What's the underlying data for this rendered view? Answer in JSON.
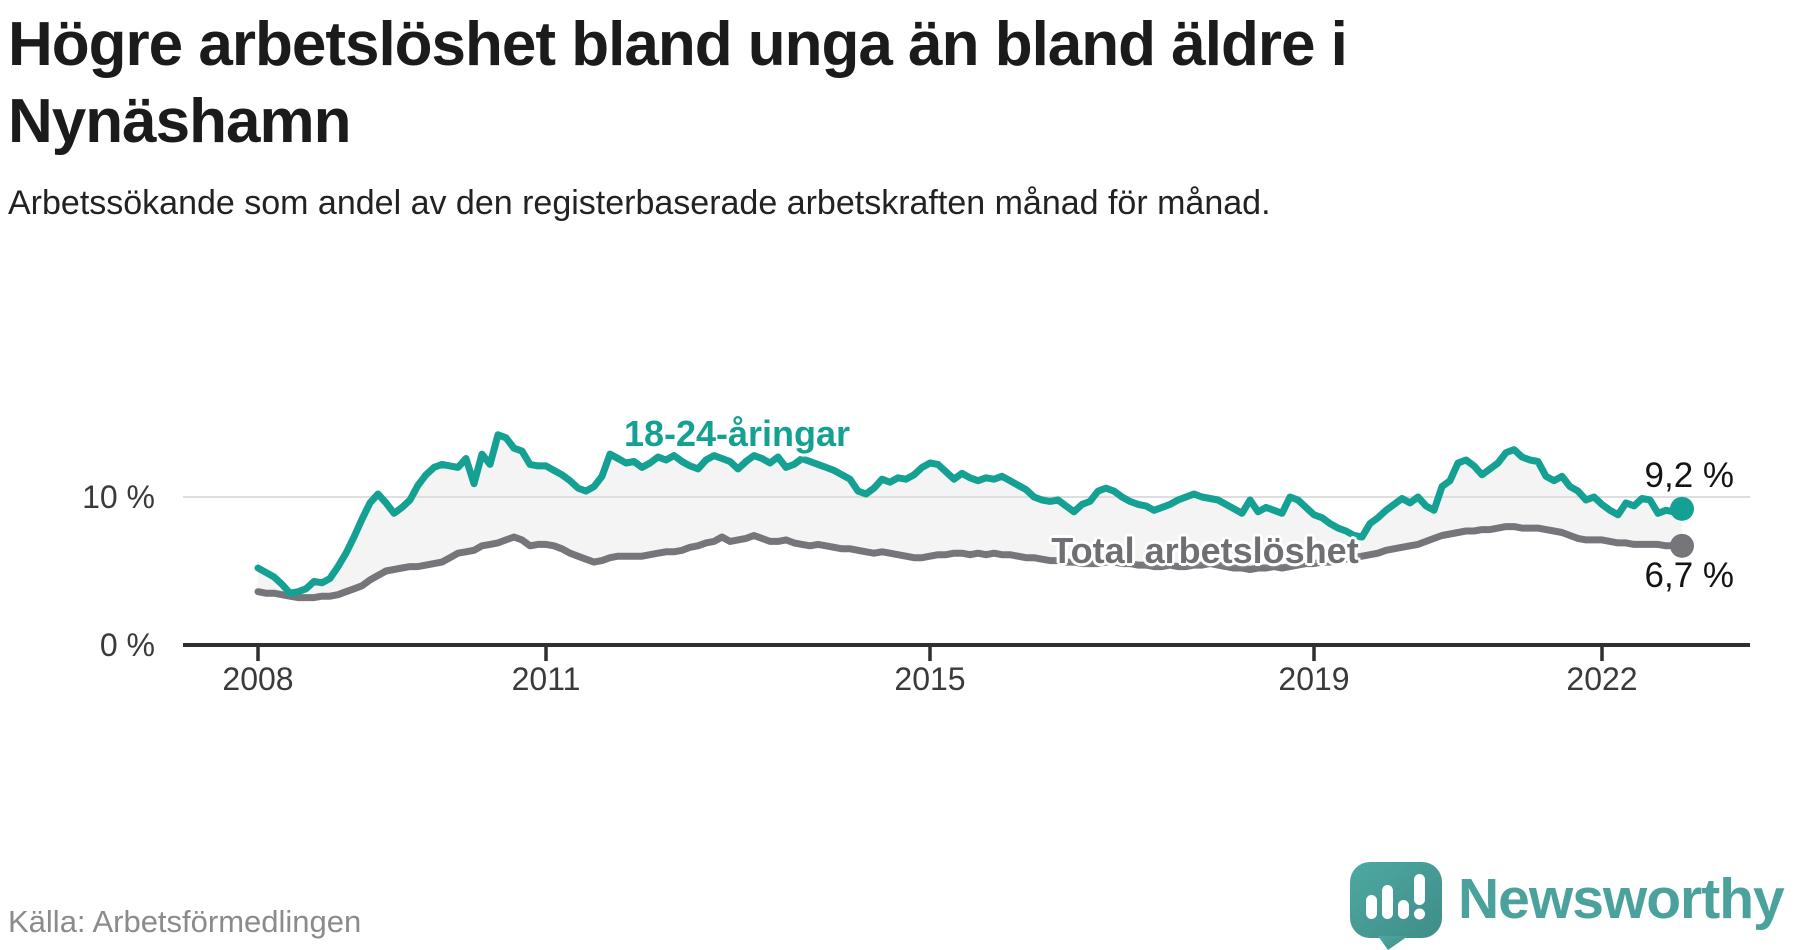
{
  "header": {
    "title": "Högre arbetslöshet bland unga än bland äldre i Nynäshamn",
    "subtitle": "Arbetssökande som andel av den registerbaserade arbetskraften månad för månad."
  },
  "footer": {
    "source": "Källa: Arbetsförmedlingen",
    "brand": "Newsworthy"
  },
  "colors": {
    "youth_line": "#14a194",
    "total_line": "#76767a",
    "area_fill": "#f4f4f4",
    "gridline": "#dedede",
    "axis": "#2f2f2f",
    "end_label_text": "#141414",
    "brand_teal": "#4ba29d"
  },
  "chart_data": {
    "type": "line",
    "title": "Högre arbetslöshet bland unga än bland äldre i Nynäshamn",
    "subtitle": "Arbetssökande som andel av den registerbaserade arbetskraften månad för månad.",
    "frequency": "monthly",
    "x_start": "2008-01",
    "x_end": "2022-11",
    "x_ticks": [
      "2008",
      "2011",
      "2015",
      "2019",
      "2022"
    ],
    "x_tick_month_index": [
      0,
      36,
      84,
      132,
      168
    ],
    "y_ticks": [
      "0 %",
      "10 %"
    ],
    "ylim": [
      0,
      21
    ],
    "grid": "horizontal-10-only",
    "legend_position": "inline-labels",
    "area_fill_between_series": true,
    "series": [
      {
        "name": "18-24-åringar",
        "color": "#14a194",
        "end_label": "9,2 %",
        "end_value": 9.2,
        "values": [
          5.2,
          4.9,
          4.6,
          4.1,
          3.5,
          3.6,
          3.8,
          4.3,
          4.2,
          4.5,
          5.3,
          6.2,
          7.3,
          8.5,
          9.6,
          10.2,
          9.6,
          8.9,
          9.3,
          9.8,
          10.8,
          11.5,
          12.0,
          12.2,
          12.1,
          12.0,
          12.6,
          10.9,
          12.9,
          12.2,
          14.2,
          14.0,
          13.3,
          13.1,
          12.2,
          12.1,
          12.1,
          11.8,
          11.5,
          11.1,
          10.6,
          10.4,
          10.7,
          11.4,
          12.9,
          12.6,
          12.3,
          12.4,
          12.0,
          12.3,
          12.7,
          12.5,
          12.8,
          12.4,
          12.1,
          11.9,
          12.5,
          12.8,
          12.6,
          12.4,
          11.9,
          12.4,
          12.8,
          12.6,
          12.3,
          12.7,
          12.0,
          12.2,
          12.6,
          12.4,
          12.2,
          12.0,
          11.8,
          11.5,
          11.2,
          10.4,
          10.2,
          10.6,
          11.2,
          11.0,
          11.3,
          11.2,
          11.5,
          12.0,
          12.3,
          12.2,
          11.7,
          11.2,
          11.6,
          11.3,
          11.1,
          11.3,
          11.2,
          11.4,
          11.1,
          10.8,
          10.5,
          10.0,
          9.8,
          9.7,
          9.8,
          9.4,
          9.0,
          9.5,
          9.7,
          10.4,
          10.6,
          10.4,
          10.0,
          9.7,
          9.5,
          9.4,
          9.1,
          9.3,
          9.5,
          9.8,
          10.0,
          10.2,
          10.0,
          9.9,
          9.8,
          9.5,
          9.2,
          8.9,
          9.8,
          9.0,
          9.3,
          9.1,
          8.9,
          10.0,
          9.8,
          9.3,
          8.8,
          8.6,
          8.2,
          7.9,
          7.7,
          7.4,
          7.3,
          8.2,
          8.6,
          9.1,
          9.5,
          9.9,
          9.6,
          10.0,
          9.4,
          9.1,
          10.7,
          11.1,
          12.3,
          12.5,
          12.1,
          11.5,
          11.9,
          12.3,
          13.0,
          13.2,
          12.7,
          12.5,
          12.4,
          11.4,
          11.1,
          11.4,
          10.7,
          10.4,
          9.8,
          10.0,
          9.5,
          9.1,
          8.8,
          9.6,
          9.4,
          9.9,
          9.8,
          8.9,
          9.1,
          9.0,
          9.2
        ]
      },
      {
        "name": "Total arbetslöshet",
        "color": "#76767a",
        "end_label": "6,7 %",
        "end_value": 6.7,
        "values": [
          3.6,
          3.5,
          3.5,
          3.4,
          3.3,
          3.2,
          3.2,
          3.2,
          3.3,
          3.3,
          3.4,
          3.6,
          3.8,
          4.0,
          4.4,
          4.7,
          5.0,
          5.1,
          5.2,
          5.3,
          5.3,
          5.4,
          5.5,
          5.6,
          5.9,
          6.2,
          6.3,
          6.4,
          6.7,
          6.8,
          6.9,
          7.1,
          7.3,
          7.1,
          6.7,
          6.8,
          6.8,
          6.7,
          6.5,
          6.2,
          6.0,
          5.8,
          5.6,
          5.7,
          5.9,
          6.0,
          6.0,
          6.0,
          6.0,
          6.1,
          6.2,
          6.3,
          6.3,
          6.4,
          6.6,
          6.7,
          6.9,
          7.0,
          7.3,
          7.0,
          7.1,
          7.2,
          7.4,
          7.2,
          7.0,
          7.0,
          7.1,
          6.9,
          6.8,
          6.7,
          6.8,
          6.7,
          6.6,
          6.5,
          6.5,
          6.4,
          6.3,
          6.2,
          6.3,
          6.2,
          6.1,
          6.0,
          5.9,
          5.9,
          6.0,
          6.1,
          6.1,
          6.2,
          6.2,
          6.1,
          6.2,
          6.1,
          6.2,
          6.1,
          6.1,
          6.0,
          5.9,
          5.9,
          5.8,
          5.7,
          5.7,
          5.6,
          5.6,
          5.5,
          5.5,
          5.5,
          5.6,
          5.6,
          5.5,
          5.5,
          5.4,
          5.4,
          5.3,
          5.3,
          5.4,
          5.3,
          5.3,
          5.4,
          5.4,
          5.5,
          5.4,
          5.3,
          5.2,
          5.2,
          5.1,
          5.2,
          5.2,
          5.3,
          5.2,
          5.3,
          5.4,
          5.5,
          5.5,
          5.6,
          5.6,
          5.7,
          5.8,
          5.9,
          6.0,
          6.1,
          6.2,
          6.4,
          6.5,
          6.6,
          6.7,
          6.8,
          7.0,
          7.2,
          7.4,
          7.5,
          7.6,
          7.7,
          7.7,
          7.8,
          7.8,
          7.9,
          8.0,
          8.0,
          7.9,
          7.9,
          7.9,
          7.8,
          7.7,
          7.6,
          7.4,
          7.2,
          7.1,
          7.1,
          7.1,
          7.0,
          6.9,
          6.9,
          6.8,
          6.8,
          6.8,
          6.8,
          6.7,
          6.7,
          6.7
        ]
      }
    ]
  }
}
